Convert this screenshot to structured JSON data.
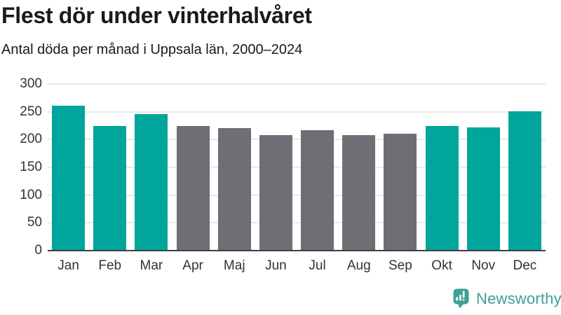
{
  "header": {
    "title": "Flest dör under vinterhalvåret",
    "subtitle": "Antal döda per månad i Uppsala län, 2000–2024"
  },
  "chart_data": {
    "type": "bar",
    "title": "Flest dör under vinterhalvåret",
    "subtitle": "Antal döda per månad i Uppsala län, 2000–2024",
    "categories": [
      "Jan",
      "Feb",
      "Mar",
      "Apr",
      "Maj",
      "Jun",
      "Jul",
      "Aug",
      "Sep",
      "Okt",
      "Nov",
      "Dec"
    ],
    "values": [
      261,
      224,
      246,
      225,
      221,
      208,
      217,
      208,
      211,
      225,
      222,
      251
    ],
    "bar_roles": [
      "highlight",
      "highlight",
      "highlight",
      "muted",
      "muted",
      "muted",
      "muted",
      "muted",
      "muted",
      "highlight",
      "highlight",
      "highlight"
    ],
    "colors": {
      "highlight": "#00a59b",
      "muted": "#6e6e74"
    },
    "xlabel": "",
    "ylabel": "",
    "ylim": [
      0,
      300
    ],
    "yticks": [
      0,
      50,
      100,
      150,
      200,
      250,
      300
    ],
    "grid": true,
    "legend": false
  },
  "footer": {
    "brand": "Newsworthy",
    "brand_color": "#3fa093"
  },
  "theme": {
    "background": "#ffffff",
    "axis_color": "#3f3f3f",
    "grid_color": "#eaeaea",
    "tick_label_color": "#333333",
    "title_color": "#1a1a1a"
  }
}
